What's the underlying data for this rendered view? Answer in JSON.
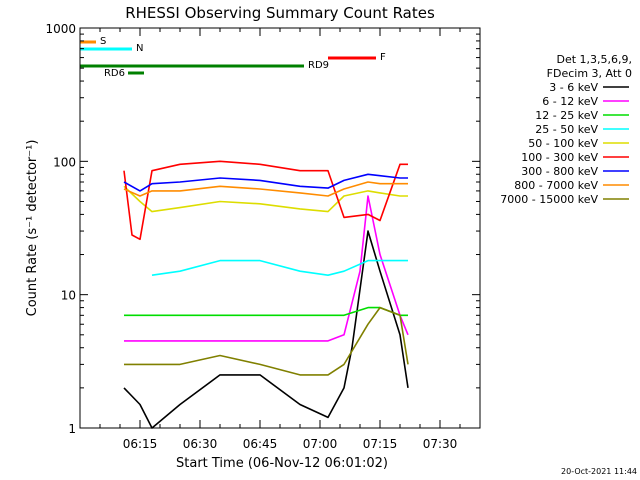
{
  "chart_data": {
    "type": "line",
    "title": "RHESSI Observing Summary Count Rates",
    "xlabel": "Start Time (06-Nov-12 06:01:02)",
    "ylabel": "Count Rate (s⁻¹ detector⁻¹)",
    "ylog": true,
    "ylim": [
      1,
      1000
    ],
    "xlim_minutes_after_0600": [
      0,
      100
    ],
    "x_ticks": [
      {
        "minute": 15,
        "label": "06:15"
      },
      {
        "minute": 30,
        "label": "06:30"
      },
      {
        "minute": 45,
        "label": "06:45"
      },
      {
        "minute": 60,
        "label": "07:00"
      },
      {
        "minute": 75,
        "label": "07:15"
      },
      {
        "minute": 90,
        "label": "07:30"
      }
    ],
    "y_ticks": [
      {
        "value": 1,
        "label": "1"
      },
      {
        "value": 10,
        "label": "10"
      },
      {
        "value": 100,
        "label": "100"
      },
      {
        "value": 1000,
        "label": "1000"
      }
    ],
    "grid": false,
    "legend_position": "right",
    "legend_header": [
      "Det 1,3,5,6,9,",
      "FDecim 3, Att 0"
    ],
    "series": [
      {
        "name": "3 - 6 keV",
        "color": "#000000",
        "x": [
          11,
          15,
          18,
          25,
          35,
          45,
          55,
          62,
          66,
          68,
          72,
          75,
          80,
          82
        ],
        "y": [
          2,
          1.5,
          1,
          1.5,
          2.5,
          2.5,
          1.5,
          1.2,
          2,
          4,
          30,
          15,
          5,
          2
        ]
      },
      {
        "name": "6 - 12 keV",
        "color": "#ff00ff",
        "x": [
          11,
          15,
          18,
          25,
          35,
          45,
          55,
          62,
          66,
          70,
          72,
          75,
          80,
          82
        ],
        "y": [
          4.5,
          4.5,
          4.5,
          4.5,
          4.5,
          4.5,
          4.5,
          4.5,
          5,
          15,
          55,
          20,
          7,
          5
        ]
      },
      {
        "name": "12 - 25 keV",
        "color": "#00dd00",
        "x": [
          11,
          15,
          18,
          25,
          35,
          45,
          55,
          62,
          66,
          72,
          75,
          80,
          82
        ],
        "y": [
          7,
          7,
          7,
          7,
          7,
          7,
          7,
          7,
          7,
          8,
          8,
          7,
          7
        ]
      },
      {
        "name": "25 - 50 keV",
        "color": "#00ffff",
        "x": [
          18,
          25,
          35,
          45,
          55,
          62,
          66,
          72,
          75,
          80,
          82
        ],
        "y": [
          14,
          15,
          18,
          18,
          15,
          14,
          15,
          18,
          18,
          18,
          18
        ]
      },
      {
        "name": "50 - 100 keV",
        "color": "#dddd00",
        "x": [
          11,
          15,
          18,
          25,
          35,
          45,
          55,
          62,
          66,
          72,
          75,
          80,
          82
        ],
        "y": [
          65,
          50,
          42,
          45,
          50,
          48,
          44,
          42,
          55,
          60,
          58,
          55,
          55
        ]
      },
      {
        "name": "100 - 300 keV",
        "color": "#ff0000",
        "x": [
          11,
          13,
          15,
          18,
          25,
          35,
          45,
          55,
          62,
          66,
          72,
          75,
          80,
          82
        ],
        "y": [
          85,
          28,
          26,
          85,
          95,
          100,
          95,
          85,
          85,
          38,
          40,
          36,
          95,
          95
        ]
      },
      {
        "name": "300 - 800 keV",
        "color": "#0000ff",
        "x": [
          11,
          15,
          18,
          25,
          35,
          45,
          55,
          62,
          66,
          72,
          75,
          80,
          82
        ],
        "y": [
          70,
          60,
          68,
          70,
          75,
          72,
          65,
          63,
          72,
          80,
          78,
          75,
          75
        ]
      },
      {
        "name": "800 - 7000 keV",
        "color": "#ff8c00",
        "x": [
          11,
          15,
          18,
          25,
          35,
          45,
          55,
          62,
          66,
          72,
          75,
          80,
          82
        ],
        "y": [
          62,
          55,
          60,
          60,
          65,
          62,
          58,
          55,
          62,
          70,
          68,
          68,
          68
        ]
      },
      {
        "name": "7000 - 15000 keV",
        "color": "#808000",
        "x": [
          11,
          15,
          18,
          25,
          35,
          45,
          55,
          62,
          66,
          72,
          75,
          80,
          82
        ],
        "y": [
          3,
          3,
          3,
          3,
          3.5,
          3,
          2.5,
          2.5,
          3,
          6,
          8,
          7,
          3
        ]
      }
    ],
    "annotations": [
      {
        "label": "S",
        "color": "#ff8c00",
        "minute_start": 0,
        "minute_end": 4
      },
      {
        "label": "N",
        "color": "#00ffff",
        "minute_start": 0,
        "minute_end": 13
      },
      {
        "label": "RD9",
        "color": "#008000",
        "minute_start": 0,
        "minute_end": 56
      },
      {
        "label": "F",
        "color": "#ff0000",
        "minute_start": 62,
        "minute_end": 74
      },
      {
        "label": "RD6",
        "color": "#008000",
        "minute_start": 12,
        "minute_end": 16
      }
    ],
    "annotation_label_order": [
      "S",
      "N",
      "RD9",
      "F",
      "RD6"
    ]
  },
  "timestamp": "20-Oct-2021 11:44"
}
